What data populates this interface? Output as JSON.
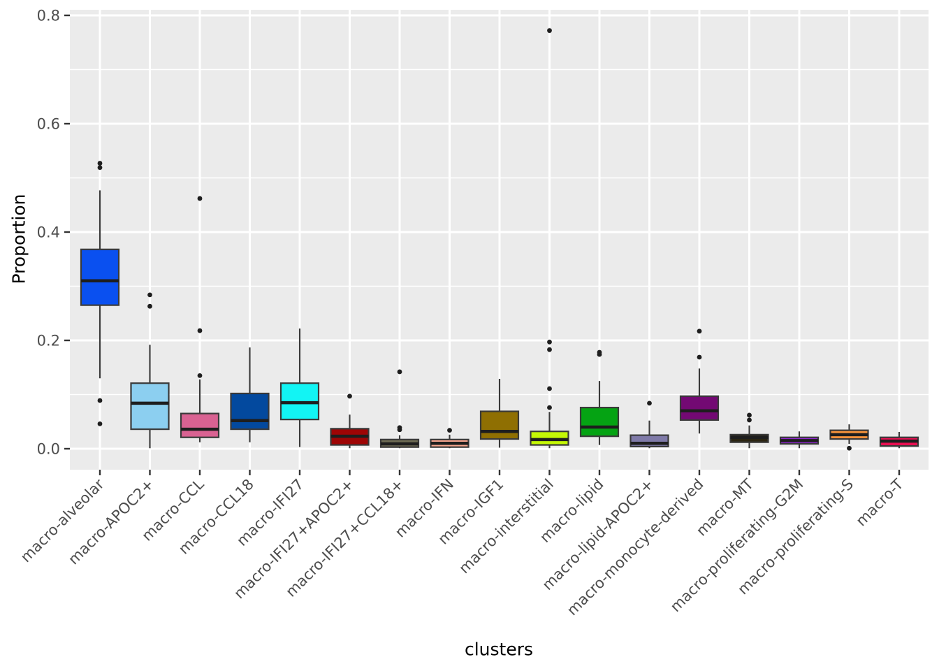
{
  "chart_data": {
    "type": "boxplot",
    "title": "",
    "xlabel": "clusters",
    "ylabel": "Proportion",
    "ylim": [
      0,
      0.8
    ],
    "yticks": [
      0.0,
      0.2,
      0.4,
      0.6,
      0.8
    ],
    "ytick_labels": [
      "0.0",
      "0.2",
      "0.4",
      "0.6",
      "0.8"
    ],
    "yticks_minor": [
      0.1,
      0.3,
      0.5,
      0.7
    ],
    "grid": "major-and-minor-horizontal, major-vertical-per-category",
    "legend": "none",
    "panel_background": "#EBEBEB",
    "grid_color": "#FFFFFF",
    "tick_label_color": "#4D4D4D",
    "axis_title_color": "#000000",
    "box_border_color": "#3A3A3A",
    "median_color": "#1E1E1E",
    "outlier_color": "#1E1E1E",
    "categories": [
      "macro-alveolar",
      "macro-APOC2+",
      "macro-CCL",
      "macro-CCL18",
      "macro-IFI27",
      "macro-IFI27+APOC2+",
      "macro-IFI27+CCL18+",
      "macro-IFN",
      "macro-IGF1",
      "macro-interstitial",
      "macro-lipid",
      "macro-lipid-APOC2+",
      "macro-monocyte-derived",
      "macro-MT",
      "macro-proliferating-G2M",
      "macro-proliferating-S",
      "macro-T"
    ],
    "series": [
      {
        "name": "macro-alveolar",
        "color": "#0A50F0",
        "whisker_low": 0.13,
        "q1": 0.265,
        "median": 0.31,
        "q3": 0.368,
        "whisker_high": 0.477,
        "outliers": [
          0.527,
          0.519,
          0.089,
          0.046
        ]
      },
      {
        "name": "macro-APOC2+",
        "color": "#8CCFF0",
        "whisker_low": 0.001,
        "q1": 0.036,
        "median": 0.084,
        "q3": 0.121,
        "whisker_high": 0.192,
        "outliers": [
          0.284,
          0.263
        ]
      },
      {
        "name": "macro-CCL",
        "color": "#D96292",
        "whisker_low": 0.012,
        "q1": 0.021,
        "median": 0.036,
        "q3": 0.065,
        "whisker_high": 0.128,
        "outliers": [
          0.462,
          0.218,
          0.135
        ]
      },
      {
        "name": "macro-CCL18",
        "color": "#03499E",
        "whisker_low": 0.012,
        "q1": 0.036,
        "median": 0.052,
        "q3": 0.102,
        "whisker_high": 0.187,
        "outliers": []
      },
      {
        "name": "macro-IFI27",
        "color": "#12F4F4",
        "whisker_low": 0.003,
        "q1": 0.054,
        "median": 0.085,
        "q3": 0.121,
        "whisker_high": 0.222,
        "outliers": []
      },
      {
        "name": "macro-IFI27+APOC2+",
        "color": "#9E0505",
        "whisker_low": 0.001,
        "q1": 0.007,
        "median": 0.023,
        "q3": 0.037,
        "whisker_high": 0.063,
        "outliers": [
          0.097
        ]
      },
      {
        "name": "macro-IFI27+CCL18+",
        "color": "#6E6C53",
        "whisker_low": 0.001,
        "q1": 0.003,
        "median": 0.009,
        "q3": 0.017,
        "whisker_high": 0.025,
        "outliers": [
          0.142,
          0.039,
          0.035
        ]
      },
      {
        "name": "macro-IFN",
        "color": "#F7A68F",
        "whisker_low": 0.001,
        "q1": 0.003,
        "median": 0.01,
        "q3": 0.017,
        "whisker_high": 0.026,
        "outliers": [
          0.034
        ]
      },
      {
        "name": "macro-IGF1",
        "color": "#8F6F02",
        "whisker_low": 0.002,
        "q1": 0.018,
        "median": 0.032,
        "q3": 0.069,
        "whisker_high": 0.129,
        "outliers": []
      },
      {
        "name": "macro-interstitial",
        "color": "#C4F705",
        "whisker_low": 0.001,
        "q1": 0.007,
        "median": 0.017,
        "q3": 0.032,
        "whisker_high": 0.068,
        "outliers": [
          0.772,
          0.197,
          0.183,
          0.111,
          0.076
        ]
      },
      {
        "name": "macro-lipid",
        "color": "#05A313",
        "whisker_low": 0.007,
        "q1": 0.023,
        "median": 0.04,
        "q3": 0.076,
        "whisker_high": 0.125,
        "outliers": [
          0.178,
          0.174
        ]
      },
      {
        "name": "macro-lipid-APOC2+",
        "color": "#7F7AA8",
        "whisker_low": 0.001,
        "q1": 0.004,
        "median": 0.01,
        "q3": 0.025,
        "whisker_high": 0.052,
        "outliers": [
          0.084
        ]
      },
      {
        "name": "macro-monocyte-derived",
        "color": "#730973",
        "whisker_low": 0.028,
        "q1": 0.053,
        "median": 0.07,
        "q3": 0.097,
        "whisker_high": 0.148,
        "outliers": [
          0.217,
          0.169
        ]
      },
      {
        "name": "macro-MT",
        "color": "#2B2512",
        "whisker_low": 0.001,
        "q1": 0.012,
        "median": 0.021,
        "q3": 0.026,
        "whisker_high": 0.043,
        "outliers": [
          0.062,
          0.053
        ]
      },
      {
        "name": "macro-proliferating-G2M",
        "color": "#9025D0",
        "whisker_low": 0.001,
        "q1": 0.009,
        "median": 0.015,
        "q3": 0.021,
        "whisker_high": 0.032,
        "outliers": []
      },
      {
        "name": "macro-proliferating-S",
        "color": "#F7943B",
        "whisker_low": 0.009,
        "q1": 0.018,
        "median": 0.026,
        "q3": 0.034,
        "whisker_high": 0.045,
        "outliers": [
          0.001
        ]
      },
      {
        "name": "macro-T",
        "color": "#E90F52",
        "whisker_low": 0.001,
        "q1": 0.005,
        "median": 0.014,
        "q3": 0.021,
        "whisker_high": 0.031,
        "outliers": []
      }
    ]
  }
}
